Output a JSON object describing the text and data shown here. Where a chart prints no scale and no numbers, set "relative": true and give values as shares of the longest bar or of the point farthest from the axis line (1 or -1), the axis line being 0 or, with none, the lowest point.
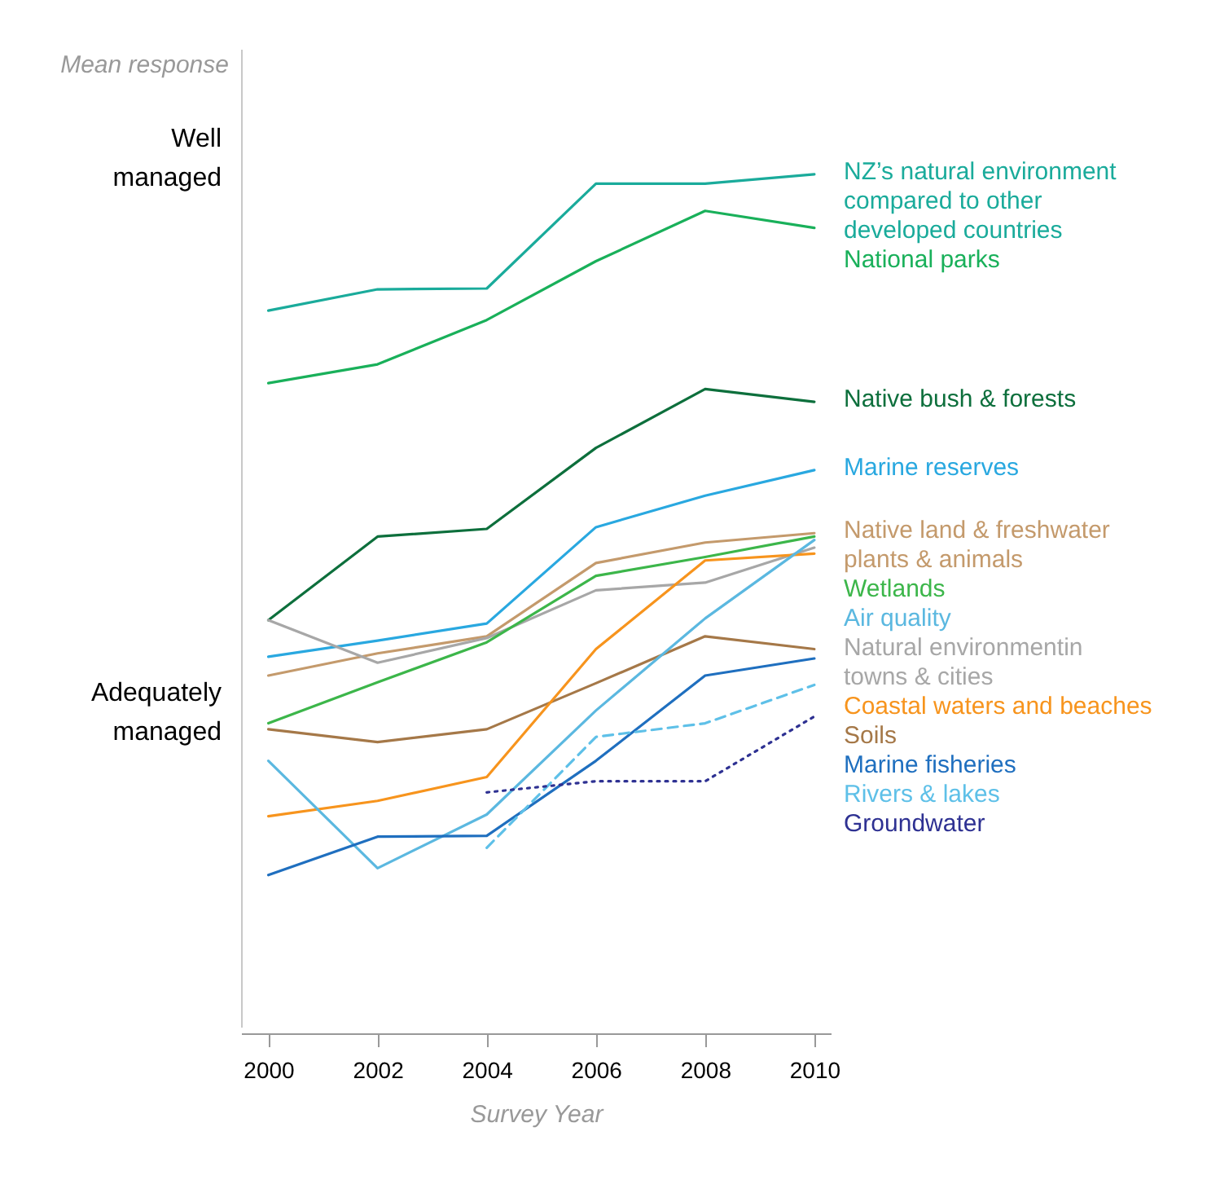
{
  "chart_data": {
    "type": "line",
    "relative": true,
    "xlabel": "Survey Year",
    "ylabel": "Mean response",
    "x": [
      2000,
      2002,
      2004,
      2006,
      2008,
      2010
    ],
    "xlim": [
      1999.5,
      2010.3
    ],
    "xticks": [
      2000,
      2002,
      2004,
      2006,
      2008,
      2010
    ],
    "grid": false,
    "legend": false,
    "annotations": [
      "Well managed",
      "Adequately managed"
    ],
    "series": [
      {
        "name": "NZ’s natural environment compared to other developed countries",
        "color": "#1aab9b",
        "values": [
          0.84,
          0.865,
          0.866,
          0.989,
          0.989,
          1.0
        ]
      },
      {
        "name": "National parks",
        "color": "#19b05a",
        "values": [
          0.755,
          0.777,
          0.829,
          0.898,
          0.957,
          0.937
        ]
      },
      {
        "name": "Native bush & forests",
        "color": "#0d6f3c",
        "values": [
          0.477,
          0.575,
          0.584,
          0.679,
          0.748,
          0.733
        ]
      },
      {
        "name": "Marine reserves",
        "color": "#29a8e0",
        "values": [
          0.434,
          0.453,
          0.473,
          0.586,
          0.623,
          0.653
        ]
      },
      {
        "name": "Native land & freshwater plants & animals",
        "color": "#c49a6c",
        "values": [
          0.412,
          0.438,
          0.458,
          0.544,
          0.568,
          0.579
        ]
      },
      {
        "name": "Natural environmentin towns & cities",
        "color": "#a7a7a7",
        "values": [
          0.477,
          0.427,
          0.456,
          0.512,
          0.521,
          0.562
        ]
      },
      {
        "name": "Wetlands",
        "color": "#3cb64a",
        "values": [
          0.356,
          0.404,
          0.451,
          0.529,
          0.551,
          0.575
        ]
      },
      {
        "name": "Soils",
        "color": "#a57848",
        "values": [
          0.349,
          0.334,
          0.349,
          0.403,
          0.458,
          0.443
        ]
      },
      {
        "name": "Coastal waters and beaches",
        "color": "#f7941d",
        "values": [
          0.247,
          0.265,
          0.293,
          0.443,
          0.547,
          0.555
        ]
      },
      {
        "name": "Air quality",
        "color": "#5bb8e0",
        "values": [
          0.312,
          0.186,
          0.249,
          0.371,
          0.479,
          0.571
        ]
      },
      {
        "name": "Marine fisheries",
        "color": "#1f6fbf",
        "values": [
          0.178,
          0.223,
          0.224,
          0.312,
          0.412,
          0.432
        ]
      },
      {
        "name": "Rivers & lakes",
        "color": "#5ec0e8",
        "line_style": "dashed",
        "x": [
          2004,
          2006,
          2008,
          2010
        ],
        "values": [
          0.21,
          0.34,
          0.356,
          0.401
        ]
      },
      {
        "name": "Groundwater",
        "color": "#2e3192",
        "line_style": "dotted",
        "x": [
          2004,
          2006,
          2008,
          2010
        ],
        "values": [
          0.275,
          0.288,
          0.288,
          0.364
        ]
      }
    ]
  }
}
